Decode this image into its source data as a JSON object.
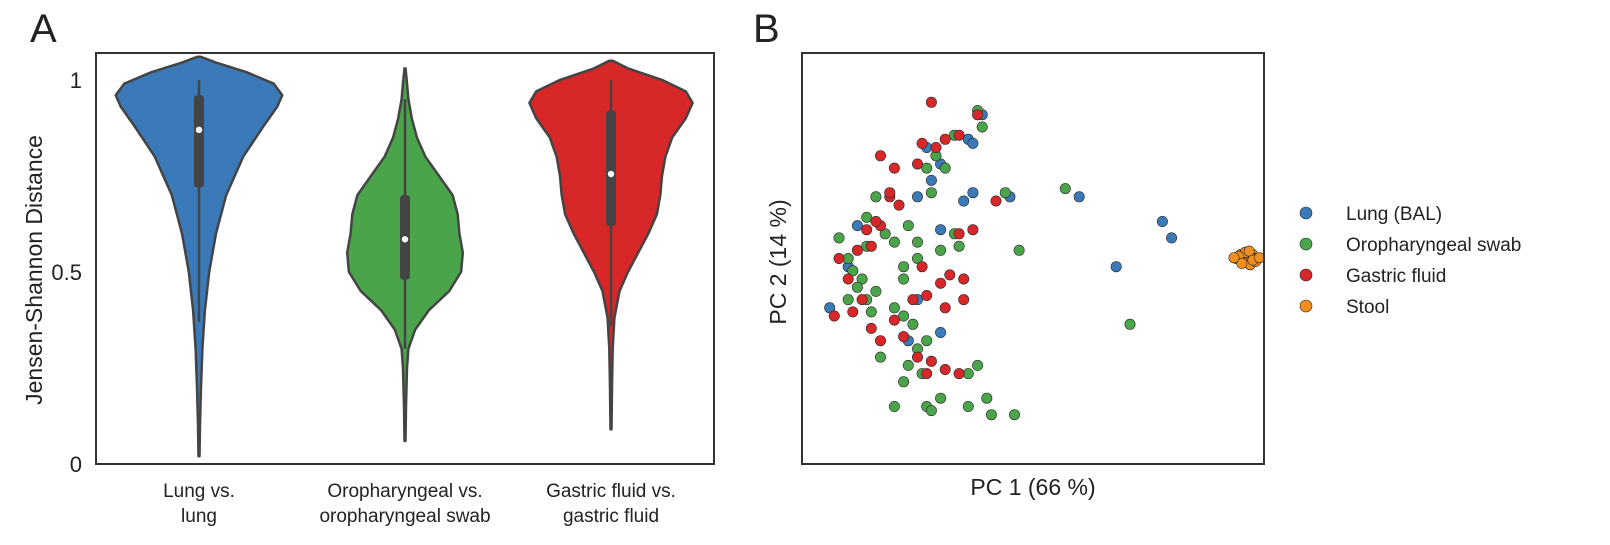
{
  "chart_data": [
    {
      "type": "violin",
      "panel_label": "A",
      "ylabel": "Jensen-Shannon Distance",
      "ylim": [
        0,
        1.07
      ],
      "yticks": [
        0,
        0.5,
        1
      ],
      "ytick_labels": [
        "0",
        "0.5",
        "1"
      ],
      "grid": false,
      "categories": [
        {
          "label_lines": [
            "Lung vs.",
            "lung"
          ],
          "color": "#3a7ab8",
          "range": [
            0.02,
            1.06
          ],
          "median": 0.87,
          "q1": 0.72,
          "q3": 0.96,
          "whisker": [
            0.37,
            1.0
          ],
          "profile": [
            [
              0.02,
              0.003
            ],
            [
              0.1,
              0.006
            ],
            [
              0.2,
              0.012
            ],
            [
              0.3,
              0.02
            ],
            [
              0.4,
              0.035
            ],
            [
              0.5,
              0.06
            ],
            [
              0.6,
              0.1
            ],
            [
              0.7,
              0.16
            ],
            [
              0.8,
              0.26
            ],
            [
              0.88,
              0.38
            ],
            [
              0.93,
              0.46
            ],
            [
              0.96,
              0.49
            ],
            [
              0.99,
              0.44
            ],
            [
              1.02,
              0.28
            ],
            [
              1.045,
              0.1
            ],
            [
              1.06,
              0.01
            ]
          ]
        },
        {
          "label_lines": [
            "Oropharyngeal vs.",
            "oropharyngeal swab"
          ],
          "color": "#4aa54a",
          "range": [
            0.06,
            1.03
          ],
          "median": 0.585,
          "q1": 0.48,
          "q3": 0.7,
          "whisker": [
            0.3,
            0.95
          ],
          "profile": [
            [
              0.06,
              0.003
            ],
            [
              0.15,
              0.006
            ],
            [
              0.25,
              0.012
            ],
            [
              0.3,
              0.02
            ],
            [
              0.35,
              0.06
            ],
            [
              0.4,
              0.14
            ],
            [
              0.45,
              0.26
            ],
            [
              0.5,
              0.33
            ],
            [
              0.55,
              0.34
            ],
            [
              0.6,
              0.32
            ],
            [
              0.65,
              0.31
            ],
            [
              0.7,
              0.28
            ],
            [
              0.75,
              0.2
            ],
            [
              0.8,
              0.12
            ],
            [
              0.85,
              0.07
            ],
            [
              0.9,
              0.04
            ],
            [
              0.95,
              0.02
            ],
            [
              1.0,
              0.01
            ],
            [
              1.03,
              0.003
            ]
          ]
        },
        {
          "label_lines": [
            "Gastric fluid vs.",
            "gastric fluid"
          ],
          "color": "#d72728",
          "range": [
            0.09,
            1.05
          ],
          "median": 0.755,
          "q1": 0.62,
          "q3": 0.92,
          "whisker": [
            0.36,
            1.0
          ],
          "profile": [
            [
              0.09,
              0.003
            ],
            [
              0.2,
              0.006
            ],
            [
              0.3,
              0.01
            ],
            [
              0.38,
              0.02
            ],
            [
              0.45,
              0.05
            ],
            [
              0.5,
              0.1
            ],
            [
              0.55,
              0.16
            ],
            [
              0.6,
              0.22
            ],
            [
              0.65,
              0.27
            ],
            [
              0.7,
              0.29
            ],
            [
              0.75,
              0.3
            ],
            [
              0.8,
              0.32
            ],
            [
              0.85,
              0.36
            ],
            [
              0.9,
              0.44
            ],
            [
              0.94,
              0.48
            ],
            [
              0.97,
              0.44
            ],
            [
              1.0,
              0.3
            ],
            [
              1.03,
              0.1
            ],
            [
              1.05,
              0.01
            ]
          ]
        }
      ]
    },
    {
      "type": "scatter",
      "panel_label": "B",
      "xlabel": "PC 1 (66 %)",
      "ylabel": "PC 2 (14 %)",
      "xticks": [],
      "yticks": [],
      "xlim": [
        0,
        100
      ],
      "ylim": [
        0,
        100
      ],
      "grid": false,
      "legend_position": "right",
      "series": [
        {
          "name": "Lung (BAL)",
          "color": "#3a7ab8",
          "points": [
            [
              39,
              85
            ],
            [
              36,
              79
            ],
            [
              30,
              73
            ],
            [
              28,
              69
            ],
            [
              25,
              65
            ],
            [
              35,
              64
            ],
            [
              37,
              66
            ],
            [
              30,
              57
            ],
            [
              12,
              58
            ],
            [
              10,
              48
            ],
            [
              6,
              38
            ],
            [
              25,
              40
            ],
            [
              30,
              32
            ],
            [
              45,
              65
            ],
            [
              60,
              65
            ],
            [
              68,
              48
            ],
            [
              78,
              59
            ],
            [
              80,
              55
            ],
            [
              23,
              30
            ],
            [
              27,
              77
            ],
            [
              37,
              78
            ]
          ]
        },
        {
          "name": "Oropharyngeal swab",
          "color": "#4aa54a",
          "points": [
            [
              39,
              82
            ],
            [
              33,
              80
            ],
            [
              27,
              72
            ],
            [
              29,
              75
            ],
            [
              16,
              65
            ],
            [
              14,
              60
            ],
            [
              18,
              56
            ],
            [
              23,
              58
            ],
            [
              25,
              54
            ],
            [
              20,
              54
            ],
            [
              22,
              48
            ],
            [
              22,
              45
            ],
            [
              25,
              50
            ],
            [
              30,
              52
            ],
            [
              33,
              56
            ],
            [
              8,
              55
            ],
            [
              10,
              50
            ],
            [
              11,
              47
            ],
            [
              13,
              45
            ],
            [
              16,
              42
            ],
            [
              14,
              40
            ],
            [
              15,
              37
            ],
            [
              20,
              38
            ],
            [
              22,
              36
            ],
            [
              24,
              34
            ],
            [
              25,
              28
            ],
            [
              27,
              30
            ],
            [
              26,
              22
            ],
            [
              23,
              24
            ],
            [
              22,
              20
            ],
            [
              20,
              14
            ],
            [
              27,
              14
            ],
            [
              28,
              13
            ],
            [
              30,
              16
            ],
            [
              36,
              14
            ],
            [
              40,
              16
            ],
            [
              41,
              12
            ],
            [
              46,
              12
            ],
            [
              36,
              22
            ],
            [
              38,
              24
            ],
            [
              10,
              40
            ],
            [
              12,
              43
            ],
            [
              34,
              53
            ],
            [
              44,
              66
            ],
            [
              47,
              52
            ],
            [
              57,
              67
            ],
            [
              71,
              34
            ],
            [
              17,
              26
            ],
            [
              28,
              66
            ],
            [
              31,
              72
            ],
            [
              38,
              86
            ],
            [
              14,
              53
            ]
          ]
        },
        {
          "name": "Gastric fluid",
          "color": "#d72728",
          "points": [
            [
              28,
              88
            ],
            [
              26,
              78
            ],
            [
              29,
              77
            ],
            [
              31,
              79
            ],
            [
              34,
              80
            ],
            [
              38,
              85
            ],
            [
              25,
              73
            ],
            [
              20,
              72
            ],
            [
              19,
              65
            ],
            [
              21,
              63
            ],
            [
              17,
              58
            ],
            [
              15,
              53
            ],
            [
              12,
              52
            ],
            [
              8,
              50
            ],
            [
              10,
              45
            ],
            [
              13,
              40
            ],
            [
              11,
              37
            ],
            [
              7,
              36
            ],
            [
              17,
              30
            ],
            [
              15,
              33
            ],
            [
              20,
              35
            ],
            [
              24,
              40
            ],
            [
              27,
              41
            ],
            [
              30,
              44
            ],
            [
              26,
              48
            ],
            [
              32,
              46
            ],
            [
              35,
              45
            ],
            [
              35,
              40
            ],
            [
              31,
              38
            ],
            [
              22,
              31
            ],
            [
              27,
              22
            ],
            [
              25,
              26
            ],
            [
              28,
              25
            ],
            [
              31,
              23
            ],
            [
              34,
              22
            ],
            [
              42,
              64
            ],
            [
              37,
              57
            ],
            [
              34,
              56
            ],
            [
              19,
              66
            ],
            [
              16,
              59
            ],
            [
              17,
              75
            ],
            [
              14,
              57
            ]
          ]
        },
        {
          "name": "Stool",
          "color": "#f28e1c",
          "points": [
            [
              94,
              50
            ],
            [
              95,
              51
            ],
            [
              96,
              50
            ],
            [
              96.5,
              49
            ],
            [
              97,
              50
            ],
            [
              97.5,
              51
            ],
            [
              98,
              50
            ],
            [
              98.5,
              50
            ],
            [
              95.5,
              49
            ],
            [
              96,
              51.5
            ],
            [
              97,
              48.5
            ],
            [
              94.5,
              50.5
            ],
            [
              98.2,
              49.3
            ],
            [
              96.8,
              51.8
            ],
            [
              95.2,
              48.8
            ],
            [
              97.6,
              49.6
            ],
            [
              93.5,
              50.2
            ],
            [
              99,
              50.2
            ]
          ]
        }
      ]
    }
  ]
}
